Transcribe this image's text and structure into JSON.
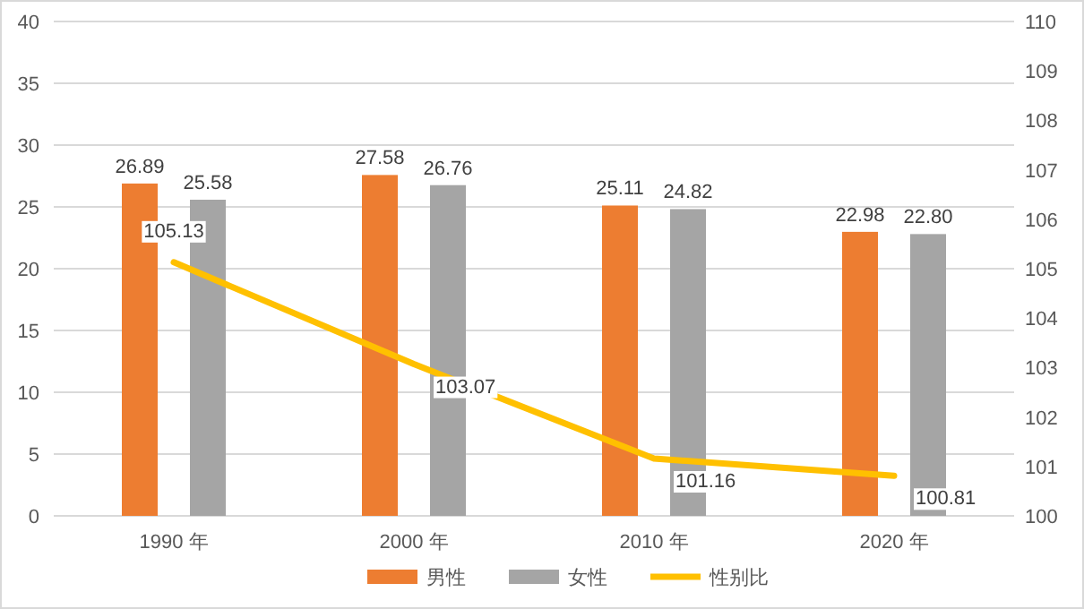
{
  "chart_data": {
    "type": "bar",
    "categories": [
      "1990 年",
      "2000 年",
      "2010 年",
      "2020 年"
    ],
    "series": [
      {
        "name": "男性",
        "color": "#ed7d31",
        "values": [
          26.89,
          27.58,
          25.11,
          22.98
        ],
        "value_labels": [
          "26.89",
          "27.58",
          "25.11",
          "22.98"
        ]
      },
      {
        "name": "女性",
        "color": "#a5a5a5",
        "values": [
          25.58,
          26.76,
          24.82,
          22.8
        ],
        "value_labels": [
          "25.58",
          "26.76",
          "24.82",
          "22.80"
        ]
      },
      {
        "name": "性别比",
        "type": "line",
        "axis": "y2",
        "color": "#ffc000",
        "values": [
          105.13,
          103.07,
          101.16,
          100.81
        ],
        "value_labels": [
          "105.13",
          "103.07",
          "101.16",
          "100.81"
        ]
      }
    ],
    "ylim": [
      0,
      40
    ],
    "yticks": [
      0,
      5,
      10,
      15,
      20,
      25,
      30,
      35,
      40
    ],
    "y2lim": [
      100,
      110
    ],
    "y2ticks": [
      100,
      101,
      102,
      103,
      104,
      105,
      106,
      107,
      108,
      109,
      110
    ],
    "grid": "y",
    "legend": "bottom",
    "marker": "none",
    "line_style": "solid"
  }
}
